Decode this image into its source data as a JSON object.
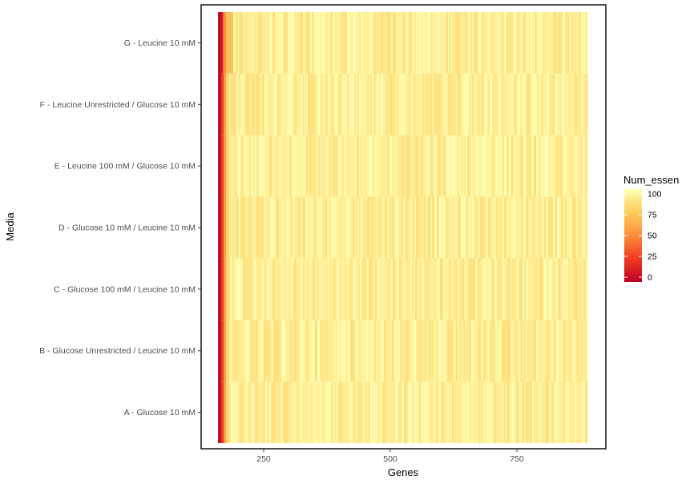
{
  "chart_data": {
    "type": "heatmap",
    "title": "",
    "xlabel": "Genes",
    "ylabel": "Media",
    "xlim": [
      150,
      900
    ],
    "x_ticks": [
      250,
      500,
      750
    ],
    "x_range": [
      160,
      890
    ],
    "categories": [
      "A - Glucose 10 mM",
      "B - Glucose Unrestricted / Leucine 10 mM",
      "C - Glucose 100 mM / Leucine 10 mM",
      "D - Glucose 10 mM / Leucine 10 mM",
      "E - Leucine 100 mM / Glucose 10 mM",
      "F - Leucine Unrestricted / Glucose 10 mM",
      "G - Leucine 10 mM"
    ],
    "series": [
      {
        "value_segments": [
          {
            "x": [
              160,
              166
            ],
            "value": 0
          },
          {
            "x": [
              166,
              171
            ],
            "value": 25
          },
          {
            "x": [
              171,
              176
            ],
            "value": 55
          },
          {
            "x": [
              176,
              182
            ],
            "value": 82
          },
          {
            "x": [
              182,
              890
            ],
            "value": 94
          }
        ]
      },
      {
        "value_segments": [
          {
            "x": [
              160,
              166
            ],
            "value": 0
          },
          {
            "x": [
              166,
              171
            ],
            "value": 25
          },
          {
            "x": [
              171,
              176
            ],
            "value": 55
          },
          {
            "x": [
              176,
              182
            ],
            "value": 82
          },
          {
            "x": [
              182,
              890
            ],
            "value": 94
          }
        ]
      },
      {
        "value_segments": [
          {
            "x": [
              160,
              166
            ],
            "value": 0
          },
          {
            "x": [
              166,
              171
            ],
            "value": 25
          },
          {
            "x": [
              171,
              176
            ],
            "value": 55
          },
          {
            "x": [
              176,
              182
            ],
            "value": 82
          },
          {
            "x": [
              182,
              890
            ],
            "value": 94
          }
        ]
      },
      {
        "value_segments": [
          {
            "x": [
              160,
              166
            ],
            "value": 0
          },
          {
            "x": [
              166,
              171
            ],
            "value": 25
          },
          {
            "x": [
              171,
              176
            ],
            "value": 55
          },
          {
            "x": [
              176,
              182
            ],
            "value": 82
          },
          {
            "x": [
              182,
              890
            ],
            "value": 94
          }
        ]
      },
      {
        "value_segments": [
          {
            "x": [
              160,
              166
            ],
            "value": 0
          },
          {
            "x": [
              166,
              171
            ],
            "value": 25
          },
          {
            "x": [
              171,
              176
            ],
            "value": 55
          },
          {
            "x": [
              176,
              182
            ],
            "value": 82
          },
          {
            "x": [
              182,
              890
            ],
            "value": 94
          }
        ]
      },
      {
        "value_segments": [
          {
            "x": [
              160,
              166
            ],
            "value": 0
          },
          {
            "x": [
              166,
              171
            ],
            "value": 25
          },
          {
            "x": [
              171,
              176
            ],
            "value": 55
          },
          {
            "x": [
              176,
              182
            ],
            "value": 82
          },
          {
            "x": [
              182,
              890
            ],
            "value": 94
          }
        ]
      },
      {
        "value_segments": [
          {
            "x": [
              160,
              166
            ],
            "value": 0
          },
          {
            "x": [
              166,
              170
            ],
            "value": 10
          },
          {
            "x": [
              170,
              176
            ],
            "value": 50
          },
          {
            "x": [
              176,
              190
            ],
            "value": 70
          },
          {
            "x": [
              190,
              890
            ],
            "value": 94
          }
        ]
      }
    ],
    "legend": {
      "title": "Num_essen",
      "ticks": [
        0,
        25,
        50,
        75,
        100
      ],
      "tick_labels": [
        "0",
        "25",
        "50",
        "75",
        "100"
      ],
      "range": [
        0,
        100
      ],
      "position": "right"
    },
    "colorscale": [
      "#BD0026",
      "#F03B20",
      "#FD8D3C",
      "#FECC5C",
      "#FFFFB2"
    ],
    "grid": false
  }
}
